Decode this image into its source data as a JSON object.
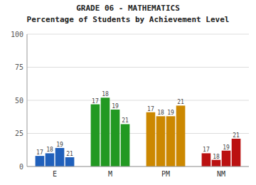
{
  "chart_data": {
    "type": "bar",
    "title": "GRADE 06 - MATHEMATICS",
    "subtitle": "Percentage of Students by Achievement Level",
    "categories": [
      "E",
      "M",
      "PM",
      "NM"
    ],
    "colors": [
      "#2060bb",
      "#229922",
      "#cc8800",
      "#bb1111"
    ],
    "series": [
      {
        "name": "17",
        "values": [
          8,
          47,
          41,
          10
        ]
      },
      {
        "name": "18",
        "values": [
          10,
          52,
          38,
          5
        ]
      },
      {
        "name": "19",
        "values": [
          14,
          43,
          38,
          12
        ]
      },
      {
        "name": "21",
        "values": [
          7,
          32,
          46,
          21
        ]
      }
    ],
    "ylim": [
      0,
      100
    ],
    "yticks": [
      0,
      25,
      50,
      75,
      100
    ],
    "grid": true
  }
}
